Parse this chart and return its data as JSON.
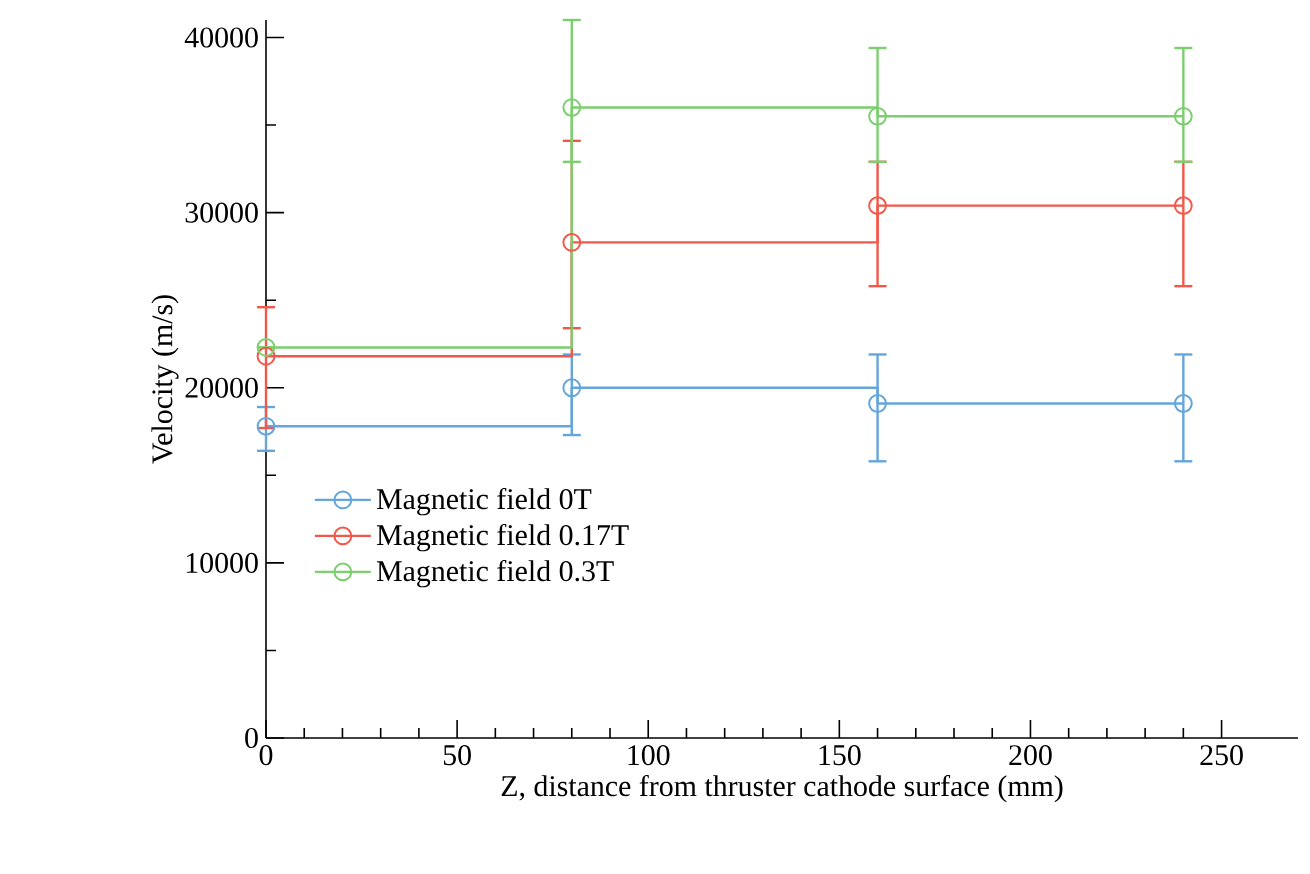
{
  "chart_data": {
    "type": "step",
    "xlabel": "Z, distance from thruster cathode surface (mm)",
    "ylabel": "Velocity (m/s)",
    "x": [
      0,
      80,
      160,
      240
    ],
    "series": [
      {
        "name": "Magnetic field 0T",
        "color": "#64a6dc",
        "values": [
          17800,
          20000,
          19100,
          19100
        ],
        "errors": [
          [
            16400,
            18900
          ],
          [
            17300,
            21900
          ],
          [
            15800,
            21900
          ],
          [
            15800,
            21900
          ]
        ]
      },
      {
        "name": "Magnetic field 0.17T",
        "color": "#f2584a",
        "values": [
          21800,
          28300,
          30400,
          30400
        ],
        "errors": [
          [
            17700,
            24600
          ],
          [
            23400,
            34100
          ],
          [
            25800,
            32900
          ],
          [
            25800,
            32900
          ]
        ]
      },
      {
        "name": "Magnetic field 0.3T",
        "color": "#7bcf6e",
        "values": [
          22300,
          36000,
          35500,
          35500
        ],
        "errors": [
          null,
          [
            32900,
            41000
          ],
          [
            32900,
            39400
          ],
          [
            32900,
            39400
          ]
        ]
      }
    ],
    "xlim": [
      0,
      270
    ],
    "ylim": [
      0,
      41000
    ],
    "xticks": [
      0,
      50,
      100,
      150,
      200,
      250
    ],
    "yticks": [
      0,
      10000,
      20000,
      30000,
      40000
    ],
    "legend": "bottom left",
    "marker": "circle",
    "line_style": "solid",
    "grid": false
  }
}
